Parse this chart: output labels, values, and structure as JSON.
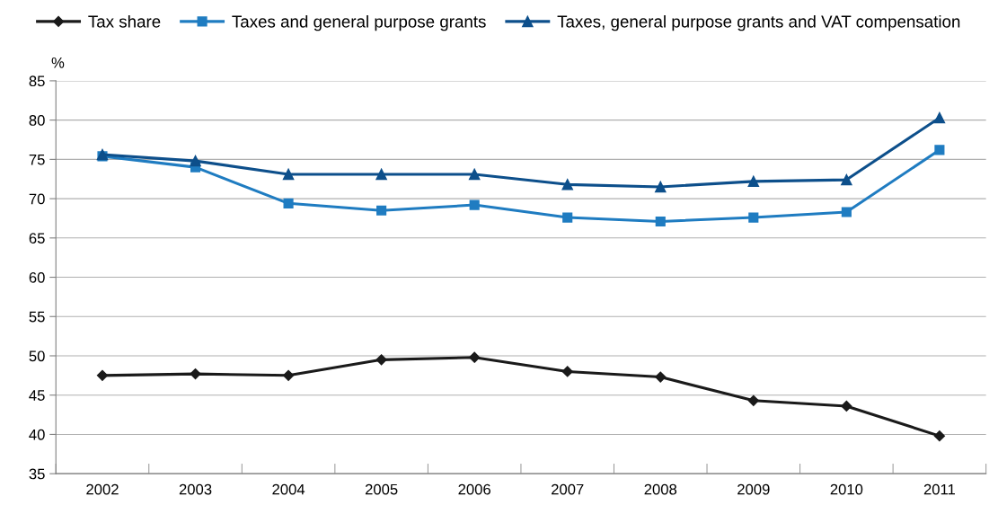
{
  "chart_data": {
    "type": "line",
    "ylabel": "%",
    "categories": [
      "2002",
      "2003",
      "2004",
      "2005",
      "2006",
      "2007",
      "2008",
      "2009",
      "2010",
      "2011"
    ],
    "series": [
      {
        "name": "Tax share",
        "color": "#1a1a1a",
        "marker": "diamond",
        "values": [
          47.5,
          47.7,
          47.5,
          49.5,
          49.8,
          48.0,
          47.3,
          44.3,
          43.6,
          39.8
        ]
      },
      {
        "name": "Taxes and general purpose grants",
        "color": "#1f7cc1",
        "marker": "square",
        "values": [
          75.4,
          74.0,
          69.4,
          68.5,
          69.2,
          67.6,
          67.1,
          67.6,
          68.3,
          76.2
        ]
      },
      {
        "name": "Taxes, general purpose grants and VAT compensation",
        "color": "#0d4f8b",
        "marker": "triangle",
        "values": [
          75.6,
          74.8,
          73.1,
          73.1,
          73.1,
          71.8,
          71.5,
          72.2,
          72.4,
          80.3
        ]
      }
    ],
    "ylim": [
      35,
      85
    ],
    "yticks": [
      35,
      40,
      45,
      50,
      55,
      60,
      65,
      70,
      75,
      80,
      85
    ],
    "grid": "y",
    "legend": "top",
    "line_style": "solid"
  }
}
